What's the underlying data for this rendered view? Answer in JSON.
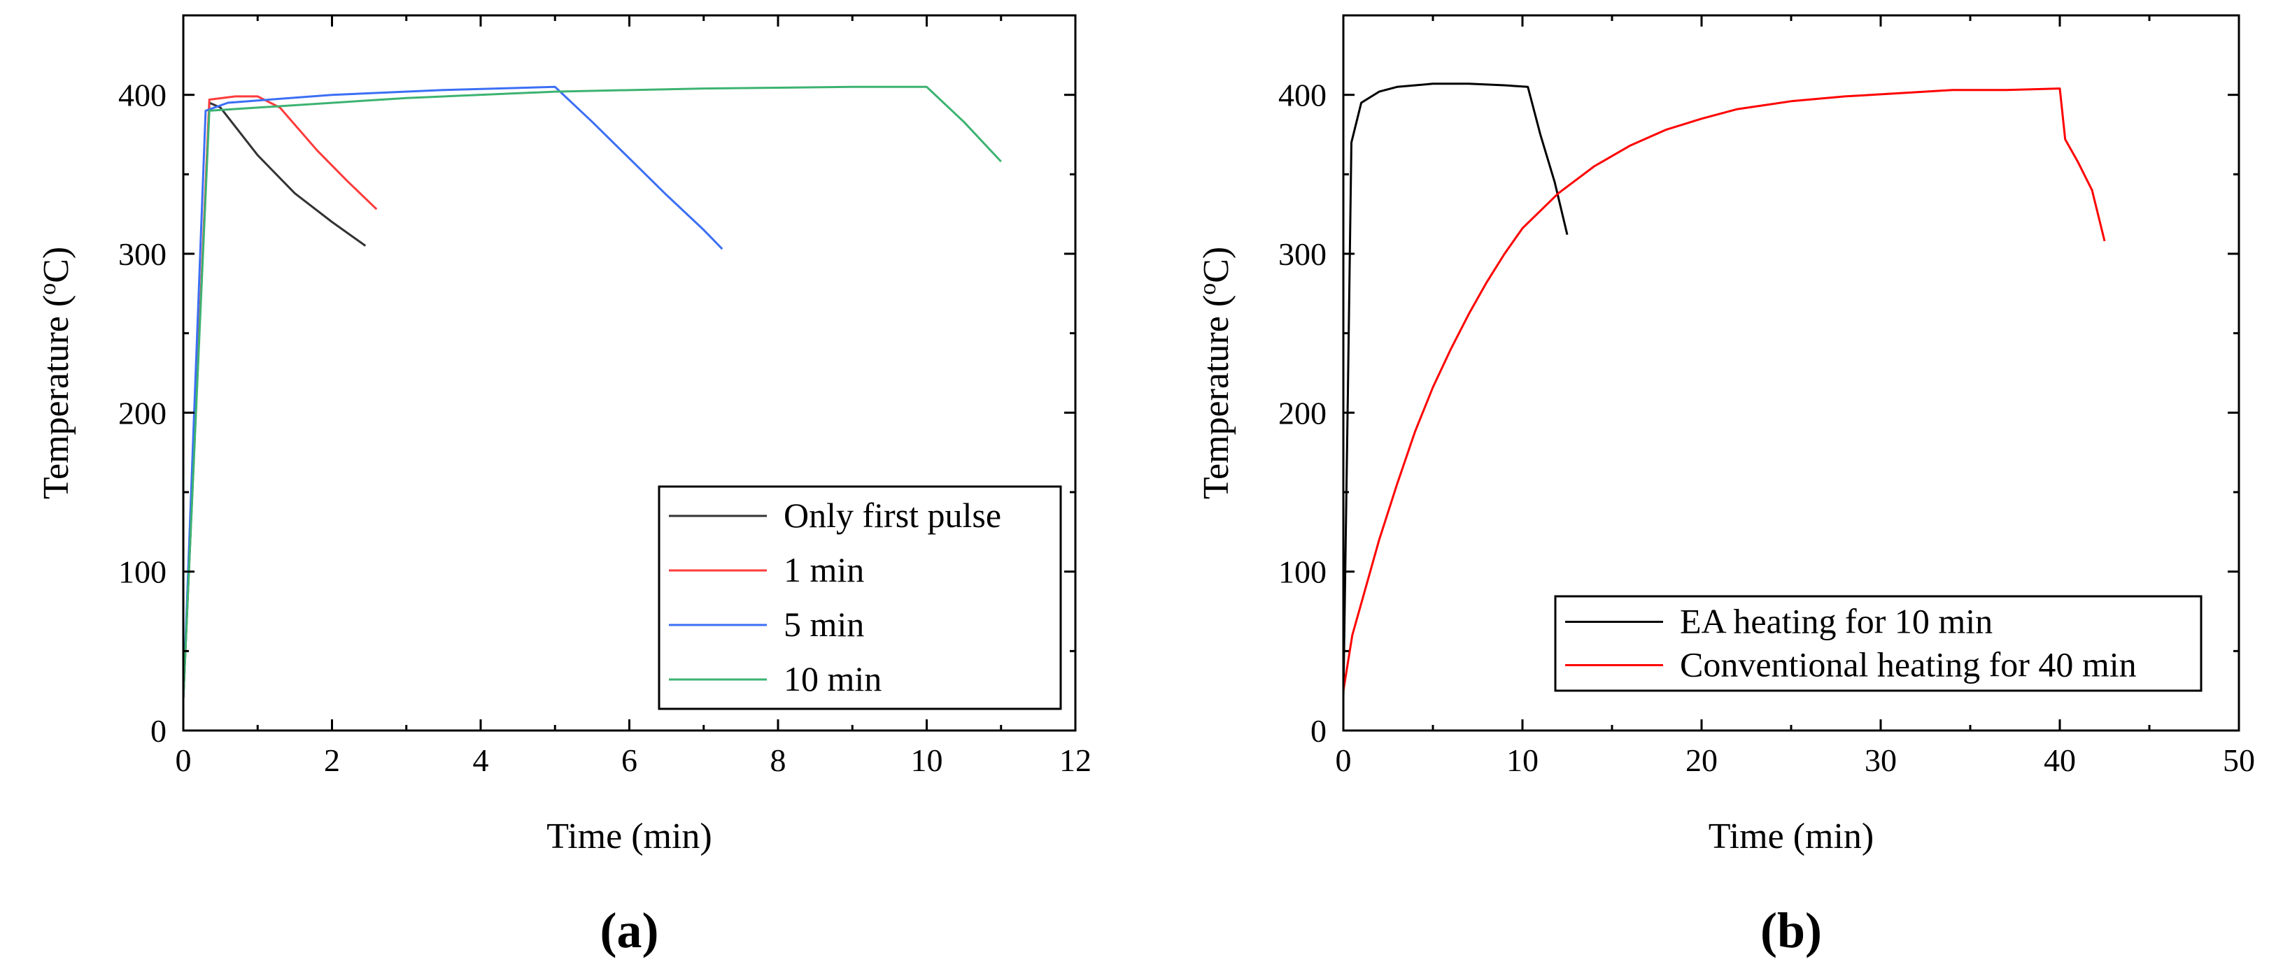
{
  "chart_data": [
    {
      "type": "line",
      "panel_label": "(a)",
      "xlabel": "Time (min)",
      "ylabel_main": "Temperature (",
      "ylabel_sup": "o",
      "ylabel_end": "C)",
      "xlim": [
        0,
        12
      ],
      "ylim": [
        0,
        450
      ],
      "x_ticks": [
        0,
        2,
        4,
        6,
        8,
        10,
        12
      ],
      "y_ticks": [
        0,
        100,
        200,
        300,
        400
      ],
      "legend_position": "bottom-right",
      "series": [
        {
          "name": "Only first pulse",
          "color": "#333333",
          "points": [
            [
              0,
              20
            ],
            [
              0.35,
              395
            ],
            [
              0.5,
              392
            ],
            [
              1.0,
              362
            ],
            [
              1.5,
              338
            ],
            [
              2.0,
              320
            ],
            [
              2.45,
              305
            ]
          ]
        },
        {
          "name": "1 min",
          "color": "#ff3b3b",
          "points": [
            [
              0,
              20
            ],
            [
              0.35,
              397
            ],
            [
              0.7,
              399
            ],
            [
              1.0,
              399
            ],
            [
              1.3,
              392
            ],
            [
              1.8,
              365
            ],
            [
              2.2,
              346
            ],
            [
              2.6,
              328
            ]
          ]
        },
        {
          "name": "5 min",
          "color": "#3b6ff5",
          "points": [
            [
              0,
              20
            ],
            [
              0.3,
              390
            ],
            [
              0.6,
              395
            ],
            [
              2.0,
              400
            ],
            [
              3.5,
              403
            ],
            [
              5.0,
              405
            ],
            [
              5.5,
              383
            ],
            [
              6.0,
              360
            ],
            [
              6.5,
              337
            ],
            [
              7.0,
              315
            ],
            [
              7.25,
              303
            ]
          ]
        },
        {
          "name": "10 min",
          "color": "#3cb371",
          "points": [
            [
              0,
              20
            ],
            [
              0.35,
              390
            ],
            [
              1.0,
              392
            ],
            [
              3.0,
              398
            ],
            [
              5.0,
              402
            ],
            [
              7.0,
              404
            ],
            [
              9.0,
              405
            ],
            [
              10.0,
              405
            ],
            [
              10.5,
              383
            ],
            [
              11.0,
              358
            ]
          ]
        }
      ]
    },
    {
      "type": "line",
      "panel_label": "(b)",
      "xlabel": "Time (min)",
      "ylabel_main": "Temperature (",
      "ylabel_sup": "o",
      "ylabel_end": "C)",
      "xlim": [
        0,
        50
      ],
      "ylim": [
        0,
        450
      ],
      "x_ticks": [
        0,
        10,
        20,
        30,
        40,
        50
      ],
      "y_ticks": [
        0,
        100,
        200,
        300,
        400
      ],
      "legend_position": "bottom-right",
      "series": [
        {
          "name": "EA heating for 10 min",
          "color": "#000000",
          "points": [
            [
              0,
              20
            ],
            [
              0.25,
              210
            ],
            [
              0.45,
              370
            ],
            [
              1.0,
              395
            ],
            [
              2.0,
              402
            ],
            [
              3.0,
              405
            ],
            [
              5.0,
              407
            ],
            [
              7.0,
              407
            ],
            [
              9.0,
              406
            ],
            [
              10.3,
              405
            ],
            [
              11.0,
              375
            ],
            [
              11.8,
              345
            ],
            [
              12.5,
              312
            ]
          ]
        },
        {
          "name": "Conventional heating for 40 min",
          "color": "#ff0000",
          "points": [
            [
              0,
              25
            ],
            [
              0.5,
              60
            ],
            [
              1.0,
              80
            ],
            [
              2.0,
              120
            ],
            [
              3.0,
              155
            ],
            [
              4.0,
              188
            ],
            [
              5.0,
              216
            ],
            [
              6.0,
              240
            ],
            [
              7.0,
              262
            ],
            [
              8.0,
              282
            ],
            [
              9.0,
              300
            ],
            [
              10.0,
              316
            ],
            [
              12.0,
              338
            ],
            [
              14.0,
              355
            ],
            [
              16.0,
              368
            ],
            [
              18.0,
              378
            ],
            [
              20.0,
              385
            ],
            [
              22.0,
              391
            ],
            [
              25.0,
              396
            ],
            [
              28.0,
              399
            ],
            [
              31.0,
              401
            ],
            [
              34.0,
              403
            ],
            [
              37.0,
              403
            ],
            [
              40.0,
              404
            ],
            [
              40.3,
              372
            ],
            [
              41.0,
              358
            ],
            [
              41.8,
              340
            ],
            [
              42.5,
              308
            ]
          ]
        }
      ]
    }
  ]
}
